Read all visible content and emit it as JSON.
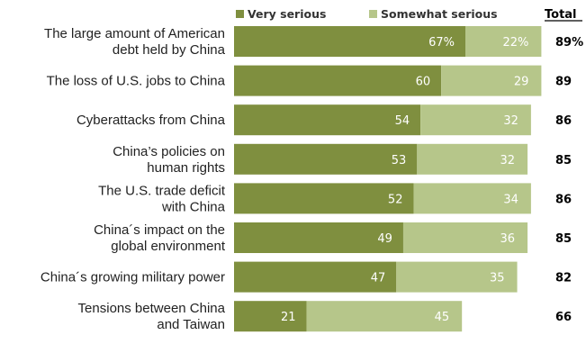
{
  "chart_data": {
    "type": "bar",
    "orientation": "horizontal",
    "stacked": true,
    "categories": [
      [
        "The large amount of American",
        "debt held by China"
      ],
      [
        "The loss of U.S. jobs to China"
      ],
      [
        "Cyberattacks from China"
      ],
      [
        "China’s policies on",
        "human rights"
      ],
      [
        "The U.S. trade deficit",
        "with China"
      ],
      [
        "China´s impact on the",
        "global environment"
      ],
      [
        "China´s growing military power"
      ],
      [
        "Tensions between China",
        "and Taiwan"
      ]
    ],
    "series": [
      {
        "name": "Very serious",
        "color": "#7f8f3f",
        "values": [
          67,
          60,
          54,
          53,
          52,
          49,
          47,
          21
        ],
        "labels": [
          "67%",
          "60",
          "54",
          "53",
          "52",
          "49",
          "47",
          "21"
        ]
      },
      {
        "name": "Somewhat serious",
        "color": "#b6c68a",
        "values": [
          22,
          29,
          32,
          32,
          34,
          36,
          35,
          45
        ],
        "labels": [
          "22%",
          "29",
          "32",
          "32",
          "34",
          "36",
          "35",
          "45"
        ]
      }
    ],
    "totals_header": "Total",
    "totals": [
      "89%",
      "89",
      "86",
      "85",
      "86",
      "85",
      "82",
      "66"
    ],
    "xlim": [
      0,
      100
    ],
    "legend_position": "top"
  }
}
